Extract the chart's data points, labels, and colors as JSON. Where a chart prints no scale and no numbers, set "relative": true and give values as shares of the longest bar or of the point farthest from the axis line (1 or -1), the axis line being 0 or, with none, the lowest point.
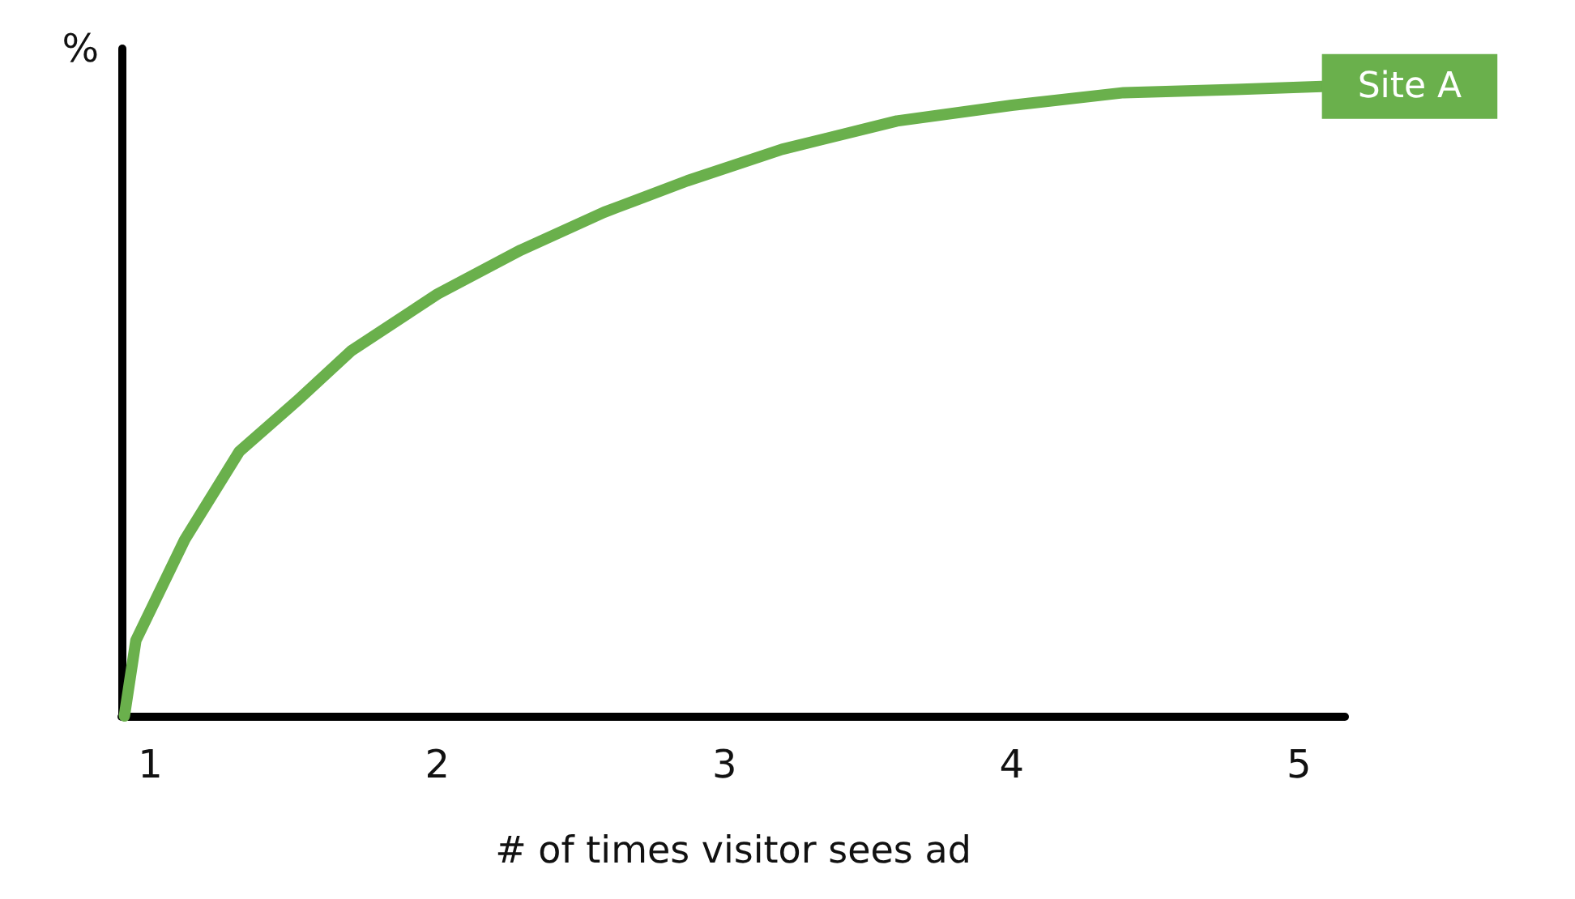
{
  "chart_data": {
    "type": "line",
    "relative": true,
    "xlabel": "# of times visitor sees ad",
    "ylabel": "%",
    "xlim": [
      0.9,
      5.16
    ],
    "xticks": [
      1,
      2,
      3,
      4,
      5
    ],
    "x": [
      0.91,
      0.95,
      1.12,
      1.31,
      1.51,
      1.7,
      2.0,
      2.29,
      2.58,
      2.87,
      3.2,
      3.6,
      4.0,
      4.39,
      4.78,
      5.08
    ],
    "series": [
      {
        "name": "Site A",
        "color": "#6ab04c",
        "values": [
          0,
          0.12,
          0.28,
          0.42,
          0.5,
          0.58,
          0.67,
          0.74,
          0.8,
          0.85,
          0.9,
          0.945,
          0.97,
          0.99,
          0.995,
          1
        ]
      }
    ],
    "grid": false,
    "legend": false,
    "line_style": "solid"
  }
}
